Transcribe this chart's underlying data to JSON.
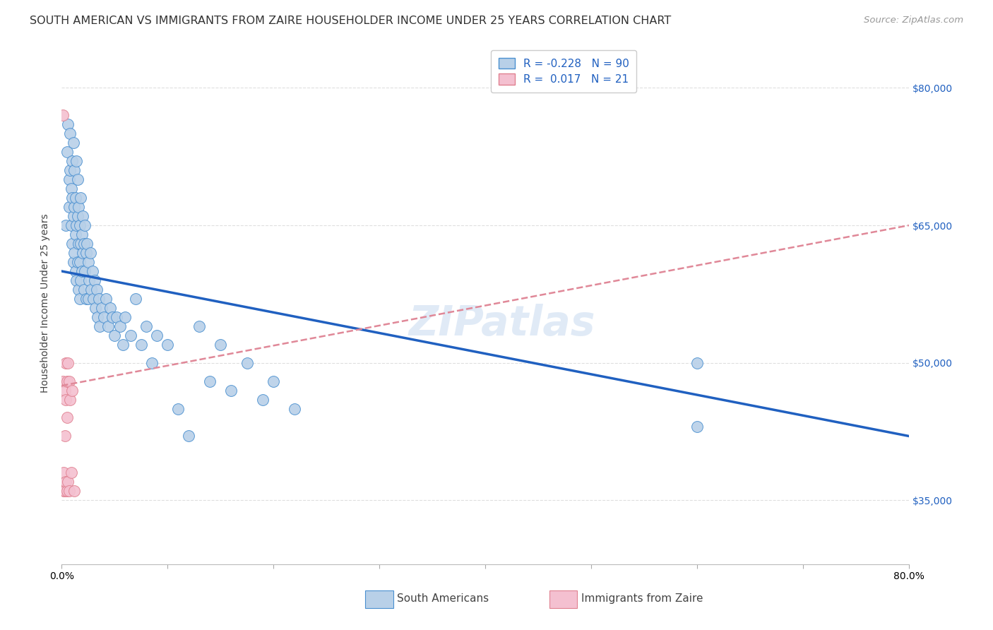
{
  "title": "SOUTH AMERICAN VS IMMIGRANTS FROM ZAIRE HOUSEHOLDER INCOME UNDER 25 YEARS CORRELATION CHART",
  "source": "Source: ZipAtlas.com",
  "ylabel": "Householder Income Under 25 years",
  "xlim": [
    0.0,
    0.8
  ],
  "ylim": [
    28000,
    85000
  ],
  "yticks": [
    35000,
    50000,
    65000,
    80000
  ],
  "ytick_labels": [
    "$35,000",
    "$50,000",
    "$65,000",
    "$80,000"
  ],
  "xtick_positions": [
    0.0,
    0.1,
    0.2,
    0.3,
    0.4,
    0.5,
    0.6,
    0.7,
    0.8
  ],
  "background_color": "#ffffff",
  "watermark": "ZIPatlas",
  "blue_R": -0.228,
  "blue_N": 90,
  "pink_R": 0.017,
  "pink_N": 21,
  "blue_color": "#b8d0e8",
  "pink_color": "#f4c0d0",
  "blue_edge_color": "#4a90d0",
  "pink_edge_color": "#e08090",
  "blue_line_color": "#2060c0",
  "pink_line_color": "#e08898",
  "blue_line_x0": 0.0,
  "blue_line_y0": 60000,
  "blue_line_x1": 0.8,
  "blue_line_y1": 42000,
  "pink_line_x0": 0.0,
  "pink_line_y0": 47500,
  "pink_line_x1": 0.8,
  "pink_line_y1": 65000,
  "blue_scatter_x": [
    0.004,
    0.005,
    0.006,
    0.007,
    0.007,
    0.008,
    0.008,
    0.009,
    0.009,
    0.01,
    0.01,
    0.01,
    0.011,
    0.011,
    0.011,
    0.012,
    0.012,
    0.012,
    0.013,
    0.013,
    0.013,
    0.014,
    0.014,
    0.014,
    0.015,
    0.015,
    0.015,
    0.016,
    0.016,
    0.016,
    0.017,
    0.017,
    0.017,
    0.018,
    0.018,
    0.018,
    0.019,
    0.019,
    0.02,
    0.02,
    0.021,
    0.021,
    0.022,
    0.022,
    0.023,
    0.023,
    0.024,
    0.025,
    0.025,
    0.026,
    0.027,
    0.028,
    0.029,
    0.03,
    0.031,
    0.032,
    0.033,
    0.034,
    0.035,
    0.036,
    0.038,
    0.04,
    0.042,
    0.044,
    0.046,
    0.048,
    0.05,
    0.052,
    0.055,
    0.058,
    0.06,
    0.065,
    0.07,
    0.075,
    0.08,
    0.085,
    0.09,
    0.1,
    0.11,
    0.12,
    0.13,
    0.14,
    0.15,
    0.16,
    0.175,
    0.19,
    0.2,
    0.22,
    0.6,
    0.6
  ],
  "blue_scatter_y": [
    65000,
    73000,
    76000,
    70000,
    67000,
    75000,
    71000,
    69000,
    65000,
    72000,
    68000,
    63000,
    74000,
    66000,
    61000,
    71000,
    67000,
    62000,
    68000,
    64000,
    60000,
    72000,
    65000,
    59000,
    70000,
    66000,
    61000,
    67000,
    63000,
    58000,
    65000,
    61000,
    57000,
    68000,
    63000,
    59000,
    64000,
    60000,
    66000,
    62000,
    63000,
    58000,
    65000,
    60000,
    62000,
    57000,
    63000,
    61000,
    57000,
    59000,
    62000,
    58000,
    60000,
    57000,
    59000,
    56000,
    58000,
    55000,
    57000,
    54000,
    56000,
    55000,
    57000,
    54000,
    56000,
    55000,
    53000,
    55000,
    54000,
    52000,
    55000,
    53000,
    57000,
    52000,
    54000,
    50000,
    53000,
    52000,
    45000,
    42000,
    54000,
    48000,
    52000,
    47000,
    50000,
    46000,
    48000,
    45000,
    50000,
    43000
  ],
  "pink_scatter_x": [
    0.001,
    0.001,
    0.002,
    0.002,
    0.003,
    0.003,
    0.003,
    0.004,
    0.004,
    0.004,
    0.005,
    0.005,
    0.005,
    0.006,
    0.006,
    0.007,
    0.007,
    0.008,
    0.009,
    0.01,
    0.012
  ],
  "pink_scatter_y": [
    77000,
    48000,
    38000,
    36000,
    47000,
    42000,
    36000,
    50000,
    46000,
    37000,
    48000,
    44000,
    36000,
    50000,
    37000,
    48000,
    36000,
    46000,
    38000,
    47000,
    36000
  ],
  "title_fontsize": 11.5,
  "source_fontsize": 9.5,
  "axis_label_fontsize": 10,
  "tick_fontsize": 10,
  "legend_fontsize": 11,
  "watermark_fontsize": 42,
  "watermark_color": "#c8daf0",
  "watermark_alpha": 0.55
}
